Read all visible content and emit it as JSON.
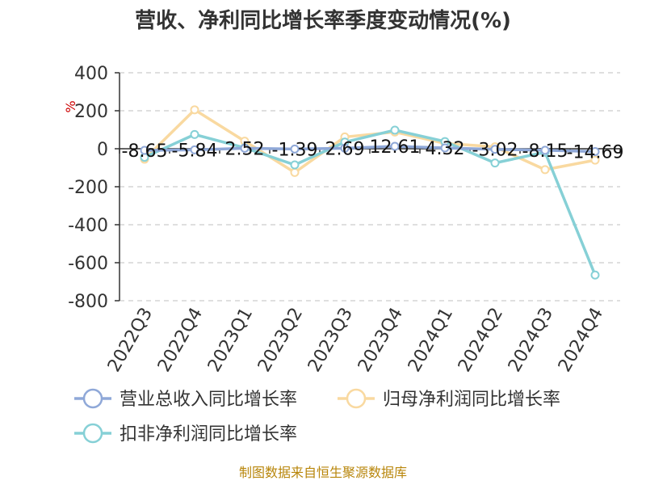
{
  "chart_data": {
    "type": "line",
    "title": "营收、净利同比增长率季度变动情况(%)",
    "ylabel": "%",
    "ylim": [
      -800,
      400
    ],
    "yticks": [
      400,
      200,
      0,
      -200,
      -400,
      -600,
      -800
    ],
    "categories": [
      "2022Q3",
      "2022Q4",
      "2023Q1",
      "2023Q2",
      "2023Q3",
      "2023Q4",
      "2024Q1",
      "2024Q2",
      "2024Q3",
      "2024Q4"
    ],
    "grid": true,
    "legend_position": "bottom",
    "series": [
      {
        "name": "营业总收入同比增长率",
        "color": "#8fa8d8",
        "values": [
          -8.65,
          -5.84,
          2.52,
          -1.39,
          2.69,
          12.61,
          4.32,
          -3.02,
          -8.15,
          -14.69
        ],
        "labels": [
          "-8.65",
          "-5.84",
          "2.52",
          "-1.39",
          "2.69",
          "12.61",
          "4.32",
          "-3.02",
          "-8.15",
          "-14.69"
        ]
      },
      {
        "name": "归母净利润同比增长率",
        "color": "#f9d9a0",
        "values": [
          -55,
          205,
          40,
          -125,
          62,
          88,
          28,
          10,
          -110,
          -60
        ]
      },
      {
        "name": "扣非净利润同比增长率",
        "color": "#86d0d6",
        "values": [
          -45,
          75,
          5,
          -85,
          35,
          98,
          38,
          -75,
          -18,
          -665
        ]
      }
    ]
  },
  "footer": {
    "source": "制图数据来自恒生聚源数据库"
  }
}
